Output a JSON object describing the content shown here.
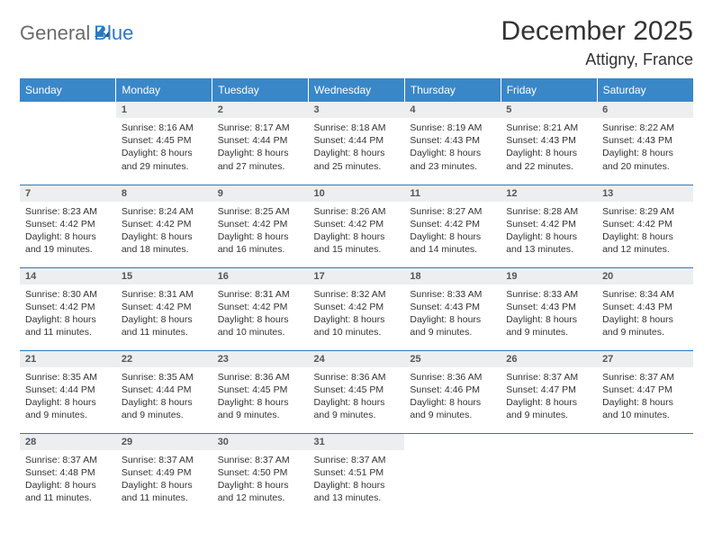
{
  "logo": {
    "word1": "General",
    "word2": "Blue"
  },
  "title": "December 2025",
  "location": "Attigny, France",
  "colors": {
    "header_bg": "#3a87c8",
    "row_border": "#2f78bd",
    "daynum_bg": "#eceeef",
    "logo_blue": "#2f78bd",
    "logo_gray": "#6b6b6b"
  },
  "daynames": [
    "Sunday",
    "Monday",
    "Tuesday",
    "Wednesday",
    "Thursday",
    "Friday",
    "Saturday"
  ],
  "weeks": [
    [
      null,
      {
        "n": "1",
        "sr": "8:16 AM",
        "ss": "4:45 PM",
        "dl": "8 hours and 29 minutes."
      },
      {
        "n": "2",
        "sr": "8:17 AM",
        "ss": "4:44 PM",
        "dl": "8 hours and 27 minutes."
      },
      {
        "n": "3",
        "sr": "8:18 AM",
        "ss": "4:44 PM",
        "dl": "8 hours and 25 minutes."
      },
      {
        "n": "4",
        "sr": "8:19 AM",
        "ss": "4:43 PM",
        "dl": "8 hours and 23 minutes."
      },
      {
        "n": "5",
        "sr": "8:21 AM",
        "ss": "4:43 PM",
        "dl": "8 hours and 22 minutes."
      },
      {
        "n": "6",
        "sr": "8:22 AM",
        "ss": "4:43 PM",
        "dl": "8 hours and 20 minutes."
      }
    ],
    [
      {
        "n": "7",
        "sr": "8:23 AM",
        "ss": "4:42 PM",
        "dl": "8 hours and 19 minutes."
      },
      {
        "n": "8",
        "sr": "8:24 AM",
        "ss": "4:42 PM",
        "dl": "8 hours and 18 minutes."
      },
      {
        "n": "9",
        "sr": "8:25 AM",
        "ss": "4:42 PM",
        "dl": "8 hours and 16 minutes."
      },
      {
        "n": "10",
        "sr": "8:26 AM",
        "ss": "4:42 PM",
        "dl": "8 hours and 15 minutes."
      },
      {
        "n": "11",
        "sr": "8:27 AM",
        "ss": "4:42 PM",
        "dl": "8 hours and 14 minutes."
      },
      {
        "n": "12",
        "sr": "8:28 AM",
        "ss": "4:42 PM",
        "dl": "8 hours and 13 minutes."
      },
      {
        "n": "13",
        "sr": "8:29 AM",
        "ss": "4:42 PM",
        "dl": "8 hours and 12 minutes."
      }
    ],
    [
      {
        "n": "14",
        "sr": "8:30 AM",
        "ss": "4:42 PM",
        "dl": "8 hours and 11 minutes."
      },
      {
        "n": "15",
        "sr": "8:31 AM",
        "ss": "4:42 PM",
        "dl": "8 hours and 11 minutes."
      },
      {
        "n": "16",
        "sr": "8:31 AM",
        "ss": "4:42 PM",
        "dl": "8 hours and 10 minutes."
      },
      {
        "n": "17",
        "sr": "8:32 AM",
        "ss": "4:42 PM",
        "dl": "8 hours and 10 minutes."
      },
      {
        "n": "18",
        "sr": "8:33 AM",
        "ss": "4:43 PM",
        "dl": "8 hours and 9 minutes."
      },
      {
        "n": "19",
        "sr": "8:33 AM",
        "ss": "4:43 PM",
        "dl": "8 hours and 9 minutes."
      },
      {
        "n": "20",
        "sr": "8:34 AM",
        "ss": "4:43 PM",
        "dl": "8 hours and 9 minutes."
      }
    ],
    [
      {
        "n": "21",
        "sr": "8:35 AM",
        "ss": "4:44 PM",
        "dl": "8 hours and 9 minutes."
      },
      {
        "n": "22",
        "sr": "8:35 AM",
        "ss": "4:44 PM",
        "dl": "8 hours and 9 minutes."
      },
      {
        "n": "23",
        "sr": "8:36 AM",
        "ss": "4:45 PM",
        "dl": "8 hours and 9 minutes."
      },
      {
        "n": "24",
        "sr": "8:36 AM",
        "ss": "4:45 PM",
        "dl": "8 hours and 9 minutes."
      },
      {
        "n": "25",
        "sr": "8:36 AM",
        "ss": "4:46 PM",
        "dl": "8 hours and 9 minutes."
      },
      {
        "n": "26",
        "sr": "8:37 AM",
        "ss": "4:47 PM",
        "dl": "8 hours and 9 minutes."
      },
      {
        "n": "27",
        "sr": "8:37 AM",
        "ss": "4:47 PM",
        "dl": "8 hours and 10 minutes."
      }
    ],
    [
      {
        "n": "28",
        "sr": "8:37 AM",
        "ss": "4:48 PM",
        "dl": "8 hours and 11 minutes."
      },
      {
        "n": "29",
        "sr": "8:37 AM",
        "ss": "4:49 PM",
        "dl": "8 hours and 11 minutes."
      },
      {
        "n": "30",
        "sr": "8:37 AM",
        "ss": "4:50 PM",
        "dl": "8 hours and 12 minutes."
      },
      {
        "n": "31",
        "sr": "8:37 AM",
        "ss": "4:51 PM",
        "dl": "8 hours and 13 minutes."
      },
      null,
      null,
      null
    ]
  ],
  "labels": {
    "sunrise": "Sunrise:",
    "sunset": "Sunset:",
    "daylight": "Daylight:"
  }
}
